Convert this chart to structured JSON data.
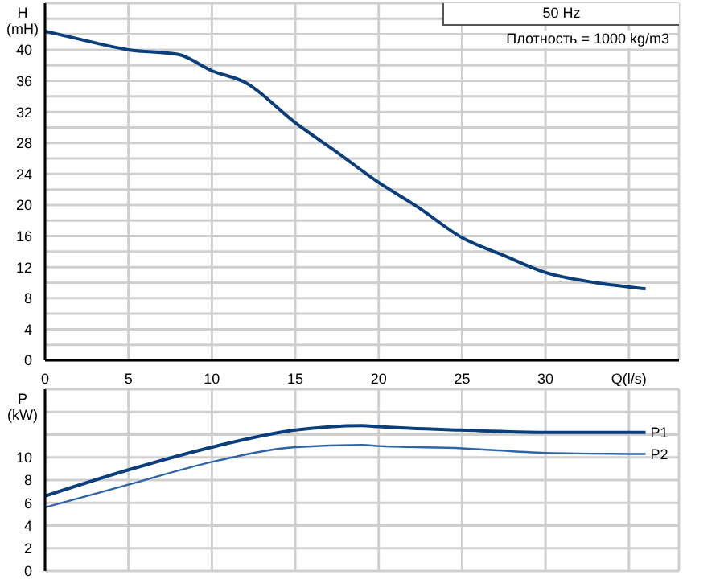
{
  "chart_data": [
    {
      "type": "line",
      "ylabel": "H (mH)",
      "annotations": [
        "50 Hz",
        "Плотность = 1000 kg/m3"
      ],
      "x": [
        0,
        2,
        5,
        8,
        10,
        12,
        15,
        17.5,
        20,
        22.3,
        25,
        27.5,
        30,
        33,
        36
      ],
      "series": [
        {
          "color": "#0b3f7c",
          "values": [
            42.4,
            41.4,
            40.0,
            39.4,
            37.3,
            35.8,
            30.6,
            26.8,
            22.9,
            19.8,
            15.8,
            13.5,
            11.3,
            10.0,
            9.2
          ]
        }
      ],
      "xlim": [
        0,
        38
      ],
      "xticks": [
        0,
        5,
        10,
        15,
        20,
        25,
        30,
        {
          "value": 35,
          "label": "Q(l/s)"
        }
      ],
      "ylim": [
        0,
        46
      ],
      "yticks": [
        0,
        {
          "value": 2,
          "label": null
        },
        4,
        {
          "value": 6,
          "label": null
        },
        8,
        {
          "value": 10,
          "label": null
        },
        12,
        {
          "value": 14,
          "label": null
        },
        16,
        {
          "value": 18,
          "label": null
        },
        20,
        {
          "value": 22,
          "label": null
        },
        24,
        {
          "value": 26,
          "label": null
        },
        28,
        {
          "value": 30,
          "label": null
        },
        32,
        {
          "value": 34,
          "label": null
        },
        36,
        {
          "value": 38,
          "label": null
        },
        40,
        {
          "value": 42,
          "label": null
        },
        {
          "value": 44,
          "label": null
        }
      ],
      "grid": true,
      "marker": "none",
      "line_style": "solid"
    },
    {
      "type": "line",
      "ylabel": "P (kW)",
      "tick_labels": "y",
      "x": [
        0,
        5,
        10,
        15,
        19,
        20,
        25,
        30,
        36
      ],
      "series": [
        {
          "name": "P1",
          "color": "#0b3f7c",
          "values": [
            6.6,
            8.9,
            10.9,
            12.4,
            12.8,
            12.7,
            12.4,
            12.2,
            12.2
          ]
        },
        {
          "name": "P2",
          "color": "#2f64a6",
          "values": [
            5.6,
            7.6,
            9.6,
            10.9,
            11.1,
            11.0,
            10.8,
            10.4,
            10.3
          ]
        }
      ],
      "xlim": [
        0,
        38
      ],
      "xticks": [
        0,
        5,
        10,
        15,
        20,
        25,
        30,
        35
      ],
      "ylim": [
        0,
        16
      ],
      "yticks": [
        0,
        2,
        4,
        6,
        8,
        10,
        {
          "value": 12,
          "label": null
        },
        {
          "value": 14,
          "label": null
        }
      ],
      "grid": true,
      "marker": "none",
      "line_style": "solid"
    }
  ]
}
